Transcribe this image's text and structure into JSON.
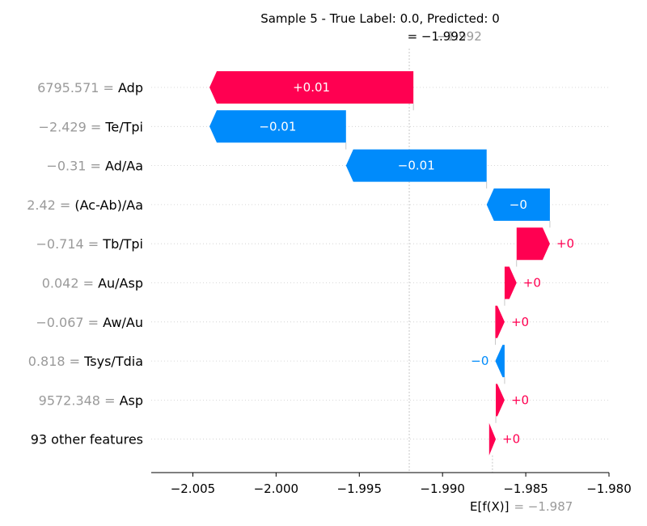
{
  "chart_data": {
    "type": "bar",
    "title": "Sample 5 - True Label: 0.0, Predicted: 0",
    "fx_label": "= −1.992",
    "fx_value_overlay": "−1.992",
    "ex_label": "E[f(X)]",
    "ex_value": "= −1.987",
    "base_value": -1.987,
    "final_value": -1.992,
    "xlim": [
      -2.0075,
      -1.98
    ],
    "ticks": [
      -2.005,
      -2.0,
      -1.995,
      -1.99,
      -1.985,
      -1.98
    ],
    "tick_labels": [
      "−2.005",
      "−2.000",
      "−1.995",
      "−1.990",
      "−1.985",
      "−1.980"
    ],
    "colors": {
      "positive": "#ff0051",
      "negative": "#008bfb"
    },
    "features": [
      {
        "value": "6795.571 = ",
        "name": "Adp",
        "start": -1.99175,
        "end": -2.004,
        "label": "+0.01",
        "sign": "+"
      },
      {
        "value": "−2.429 = ",
        "name": "Te/Tpi",
        "start": -1.9958,
        "end": -2.004,
        "label": "−0.01",
        "sign": "-"
      },
      {
        "value": "−0.31 = ",
        "name": "Ad/Aa",
        "start": -1.98735,
        "end": -1.9958,
        "label": "−0.01",
        "sign": "-"
      },
      {
        "value": "2.42 = ",
        "name": "(Ac-Ab)/Aa",
        "start": -1.98355,
        "end": -1.98735,
        "label": "−0",
        "sign": "-"
      },
      {
        "value": "−0.714 = ",
        "name": "Tb/Tpi",
        "start": -1.98555,
        "end": -1.98355,
        "label": "+0",
        "sign": "+"
      },
      {
        "value": "0.042 = ",
        "name": "Au/Asp",
        "start": -1.98627,
        "end": -1.98555,
        "label": "+0",
        "sign": "+"
      },
      {
        "value": "−0.067 = ",
        "name": "Aw/Au",
        "start": -1.98683,
        "end": -1.98627,
        "label": "+0",
        "sign": "+"
      },
      {
        "value": "0.818 = ",
        "name": "Tsys/Tdia",
        "start": -1.98627,
        "end": -1.98683,
        "label": "−0",
        "sign": "-"
      },
      {
        "value": "9572.348 = ",
        "name": "Asp",
        "start": -1.9868,
        "end": -1.98627,
        "label": "+0",
        "sign": "+"
      },
      {
        "value": "",
        "name": "93 other features",
        "start": -1.9872,
        "end": -1.9868,
        "label": "+0",
        "sign": "+"
      }
    ]
  }
}
